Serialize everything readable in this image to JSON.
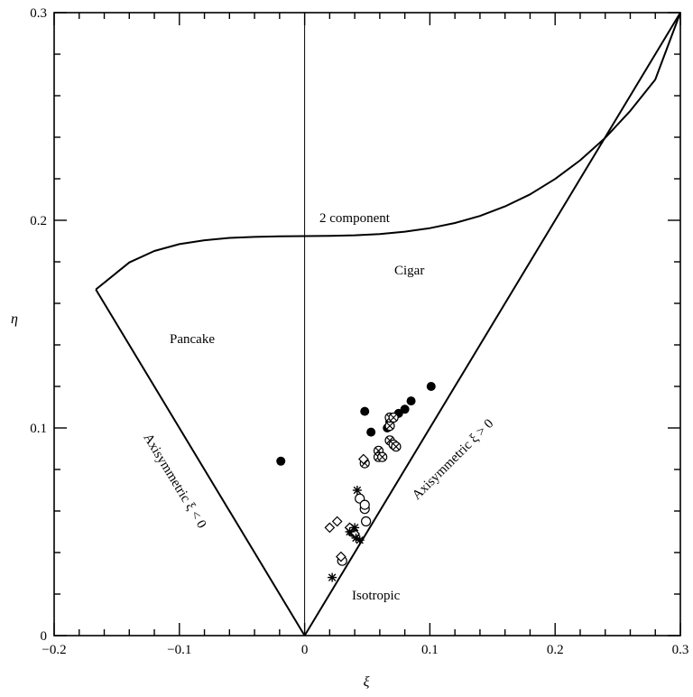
{
  "chart_data": {
    "type": "scatter",
    "title": "",
    "xlabel": "ξ",
    "ylabel": "η",
    "xlim": [
      -0.2,
      0.3
    ],
    "ylim": [
      0,
      0.3
    ],
    "x_ticks": [
      -0.2,
      -0.1,
      0,
      0.1,
      0.2,
      0.3
    ],
    "y_ticks": [
      0,
      0.1,
      0.2,
      0.3
    ],
    "x_tick_labels": [
      "−0.2",
      "−0.1",
      "0",
      "0.1",
      "0.2",
      "0.3"
    ],
    "y_tick_labels": [
      "0",
      "0.1",
      "0.2",
      "0.3"
    ],
    "grid": false,
    "annotations": {
      "two_component": "2 component",
      "cigar": "Cigar",
      "pancake": "Pancake",
      "isotropic": "Isotropic",
      "axisym_neg": "Axisymmetric ξ < 0",
      "axisym_pos": "Axisymmetric ξ > 0"
    },
    "boundaries": {
      "vertical_line": [
        [
          0,
          0
        ],
        [
          0,
          0.3
        ]
      ],
      "axisymmetric_neg": [
        [
          0,
          0
        ],
        [
          -0.1667,
          0.1667
        ]
      ],
      "axisymmetric_pos": [
        [
          0,
          0
        ],
        [
          0.3,
          0.3
        ]
      ],
      "two_component_curve": [
        [
          -0.1667,
          0.1667
        ],
        [
          -0.14,
          0.1797
        ],
        [
          -0.12,
          0.1852
        ],
        [
          -0.1,
          0.1885
        ],
        [
          -0.08,
          0.1904
        ],
        [
          -0.06,
          0.1915
        ],
        [
          -0.04,
          0.192
        ],
        [
          -0.02,
          0.1923
        ],
        [
          0,
          0.1924
        ],
        [
          0.02,
          0.1925
        ],
        [
          0.04,
          0.1928
        ],
        [
          0.06,
          0.1934
        ],
        [
          0.08,
          0.1945
        ],
        [
          0.1,
          0.1962
        ],
        [
          0.12,
          0.1987
        ],
        [
          0.14,
          0.2021
        ],
        [
          0.16,
          0.2067
        ],
        [
          0.18,
          0.2125
        ],
        [
          0.2,
          0.2199
        ],
        [
          0.22,
          0.2289
        ],
        [
          0.24,
          0.2397
        ],
        [
          0.26,
          0.2527
        ],
        [
          0.28,
          0.2678
        ],
        [
          0.3,
          0.3
        ]
      ]
    },
    "series": [
      {
        "marker": "filled-circle",
        "points": [
          [
            -0.019,
            0.084
          ],
          [
            0.048,
            0.108
          ],
          [
            0.053,
            0.098
          ],
          [
            0.066,
            0.1
          ],
          [
            0.068,
            0.103
          ],
          [
            0.075,
            0.107
          ],
          [
            0.08,
            0.109
          ],
          [
            0.085,
            0.113
          ],
          [
            0.101,
            0.12
          ]
        ]
      },
      {
        "marker": "crossed-circle",
        "points": [
          [
            0.048,
            0.083
          ],
          [
            0.059,
            0.089
          ],
          [
            0.059,
            0.086
          ],
          [
            0.062,
            0.086
          ],
          [
            0.068,
            0.101
          ],
          [
            0.068,
            0.105
          ],
          [
            0.071,
            0.105
          ],
          [
            0.068,
            0.094
          ],
          [
            0.071,
            0.092
          ],
          [
            0.073,
            0.091
          ]
        ]
      },
      {
        "marker": "open-circle",
        "points": [
          [
            0.044,
            0.066
          ],
          [
            0.048,
            0.061
          ],
          [
            0.048,
            0.063
          ],
          [
            0.049,
            0.055
          ],
          [
            0.03,
            0.036
          ],
          [
            0.038,
            0.05
          ]
        ]
      },
      {
        "marker": "open-diamond",
        "points": [
          [
            0.02,
            0.052
          ],
          [
            0.026,
            0.055
          ],
          [
            0.029,
            0.038
          ],
          [
            0.036,
            0.052
          ],
          [
            0.04,
            0.049
          ],
          [
            0.047,
            0.085
          ]
        ]
      },
      {
        "marker": "star",
        "points": [
          [
            0.022,
            0.028
          ],
          [
            0.042,
            0.07
          ],
          [
            0.036,
            0.05
          ],
          [
            0.04,
            0.052
          ],
          [
            0.041,
            0.047
          ],
          [
            0.044,
            0.046
          ]
        ]
      }
    ]
  }
}
